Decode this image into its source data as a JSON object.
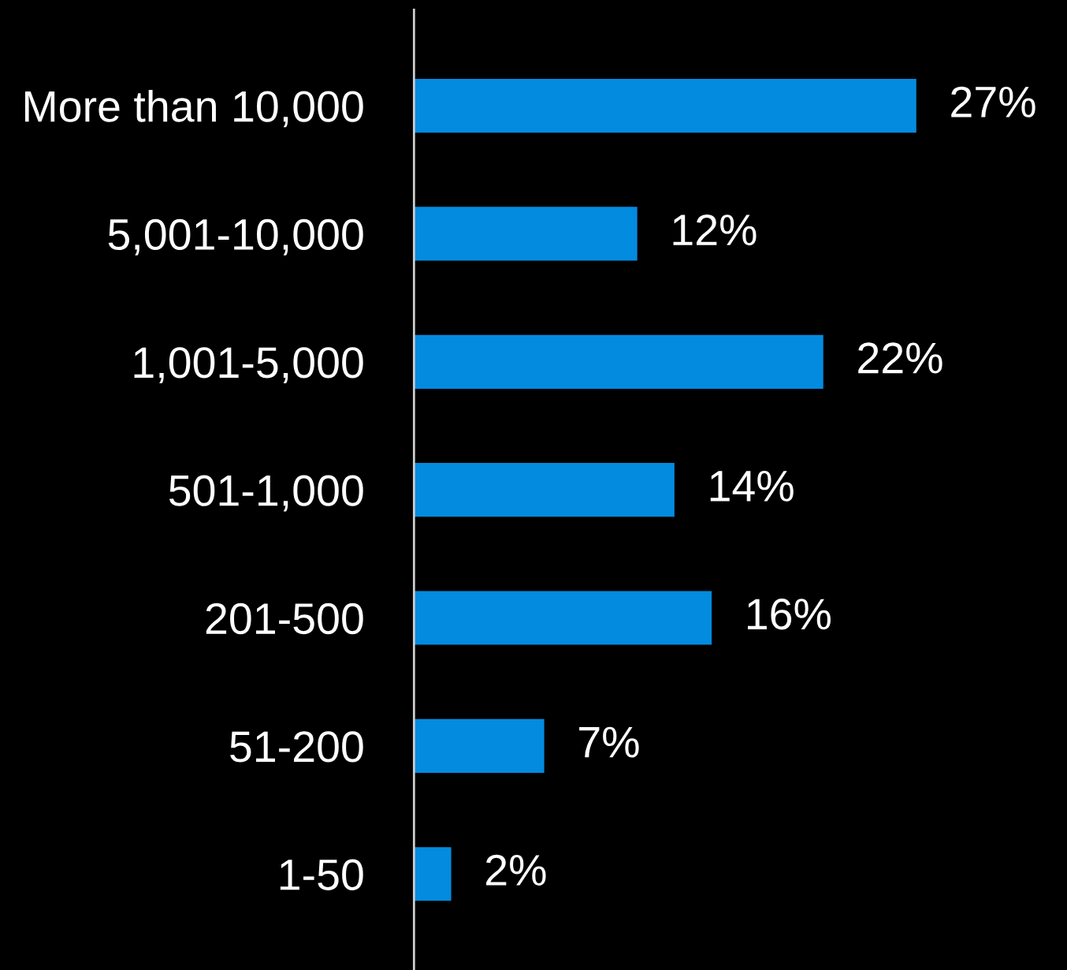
{
  "chart_data": {
    "type": "bar",
    "orientation": "horizontal",
    "categories": [
      "More than 10,000",
      "5,001-10,000",
      "1,001-5,000",
      "501-1,000",
      "201-500",
      "51-200",
      "1-50"
    ],
    "values": [
      27,
      12,
      22,
      14,
      16,
      7,
      2
    ],
    "value_labels": [
      "27%",
      "12%",
      "22%",
      "14%",
      "16%",
      "7%",
      "2%"
    ],
    "color": "#038be0",
    "grid": false,
    "legend": false
  }
}
